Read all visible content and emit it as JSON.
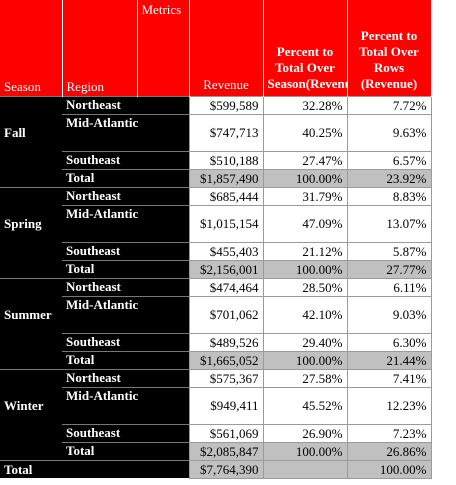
{
  "headers": {
    "season": "Season",
    "region": "Region",
    "metrics": "Metrics",
    "revenue": "Revenue",
    "pct_season": "Percent to Total Over Season(Revenue)",
    "pct_rows": "Percent to Total Over Rows (Revenue)"
  },
  "seasons": [
    {
      "name": "Fall",
      "rows": [
        {
          "region": "Northeast",
          "revenue": "$599,589",
          "pct_season": "32.28%",
          "pct_rows": "7.72%"
        },
        {
          "region": "Mid-Atlantic",
          "revenue": "$747,713",
          "pct_season": "40.25%",
          "pct_rows": "9.63%"
        },
        {
          "region": "Southeast",
          "revenue": "$510,188",
          "pct_season": "27.47%",
          "pct_rows": "6.57%"
        }
      ],
      "total": {
        "label": "Total",
        "revenue": "$1,857,490",
        "pct_season": "100.00%",
        "pct_rows": "23.92%"
      }
    },
    {
      "name": "Spring",
      "rows": [
        {
          "region": "Northeast",
          "revenue": "$685,444",
          "pct_season": "31.79%",
          "pct_rows": "8.83%"
        },
        {
          "region": "Mid-Atlantic",
          "revenue": "$1,015,154",
          "pct_season": "47.09%",
          "pct_rows": "13.07%"
        },
        {
          "region": "Southeast",
          "revenue": "$455,403",
          "pct_season": "21.12%",
          "pct_rows": "5.87%"
        }
      ],
      "total": {
        "label": "Total",
        "revenue": "$2,156,001",
        "pct_season": "100.00%",
        "pct_rows": "27.77%"
      }
    },
    {
      "name": "Summer",
      "rows": [
        {
          "region": "Northeast",
          "revenue": "$474,464",
          "pct_season": "28.50%",
          "pct_rows": "6.11%"
        },
        {
          "region": "Mid-Atlantic",
          "revenue": "$701,062",
          "pct_season": "42.10%",
          "pct_rows": "9.03%"
        },
        {
          "region": "Southeast",
          "revenue": "$489,526",
          "pct_season": "29.40%",
          "pct_rows": "6.30%"
        }
      ],
      "total": {
        "label": "Total",
        "revenue": "$1,665,052",
        "pct_season": "100.00%",
        "pct_rows": "21.44%"
      }
    },
    {
      "name": "Winter",
      "rows": [
        {
          "region": "Northeast",
          "revenue": "$575,367",
          "pct_season": "27.58%",
          "pct_rows": "7.41%"
        },
        {
          "region": "Mid-Atlantic",
          "revenue": "$949,411",
          "pct_season": "45.52%",
          "pct_rows": "12.23%"
        },
        {
          "region": "Southeast",
          "revenue": "$561,069",
          "pct_season": "26.90%",
          "pct_rows": "7.23%"
        }
      ],
      "total": {
        "label": "Total",
        "revenue": "$2,085,847",
        "pct_season": "100.00%",
        "pct_rows": "26.86%"
      }
    }
  ],
  "grand_total": {
    "label": "Total",
    "revenue": "$7,764,390",
    "pct_season": "",
    "pct_rows": "100.00%"
  },
  "colors": {
    "header_bg": "#ff0000",
    "row_header_bg": "#000000",
    "total_bg": "#c0c0c0"
  }
}
